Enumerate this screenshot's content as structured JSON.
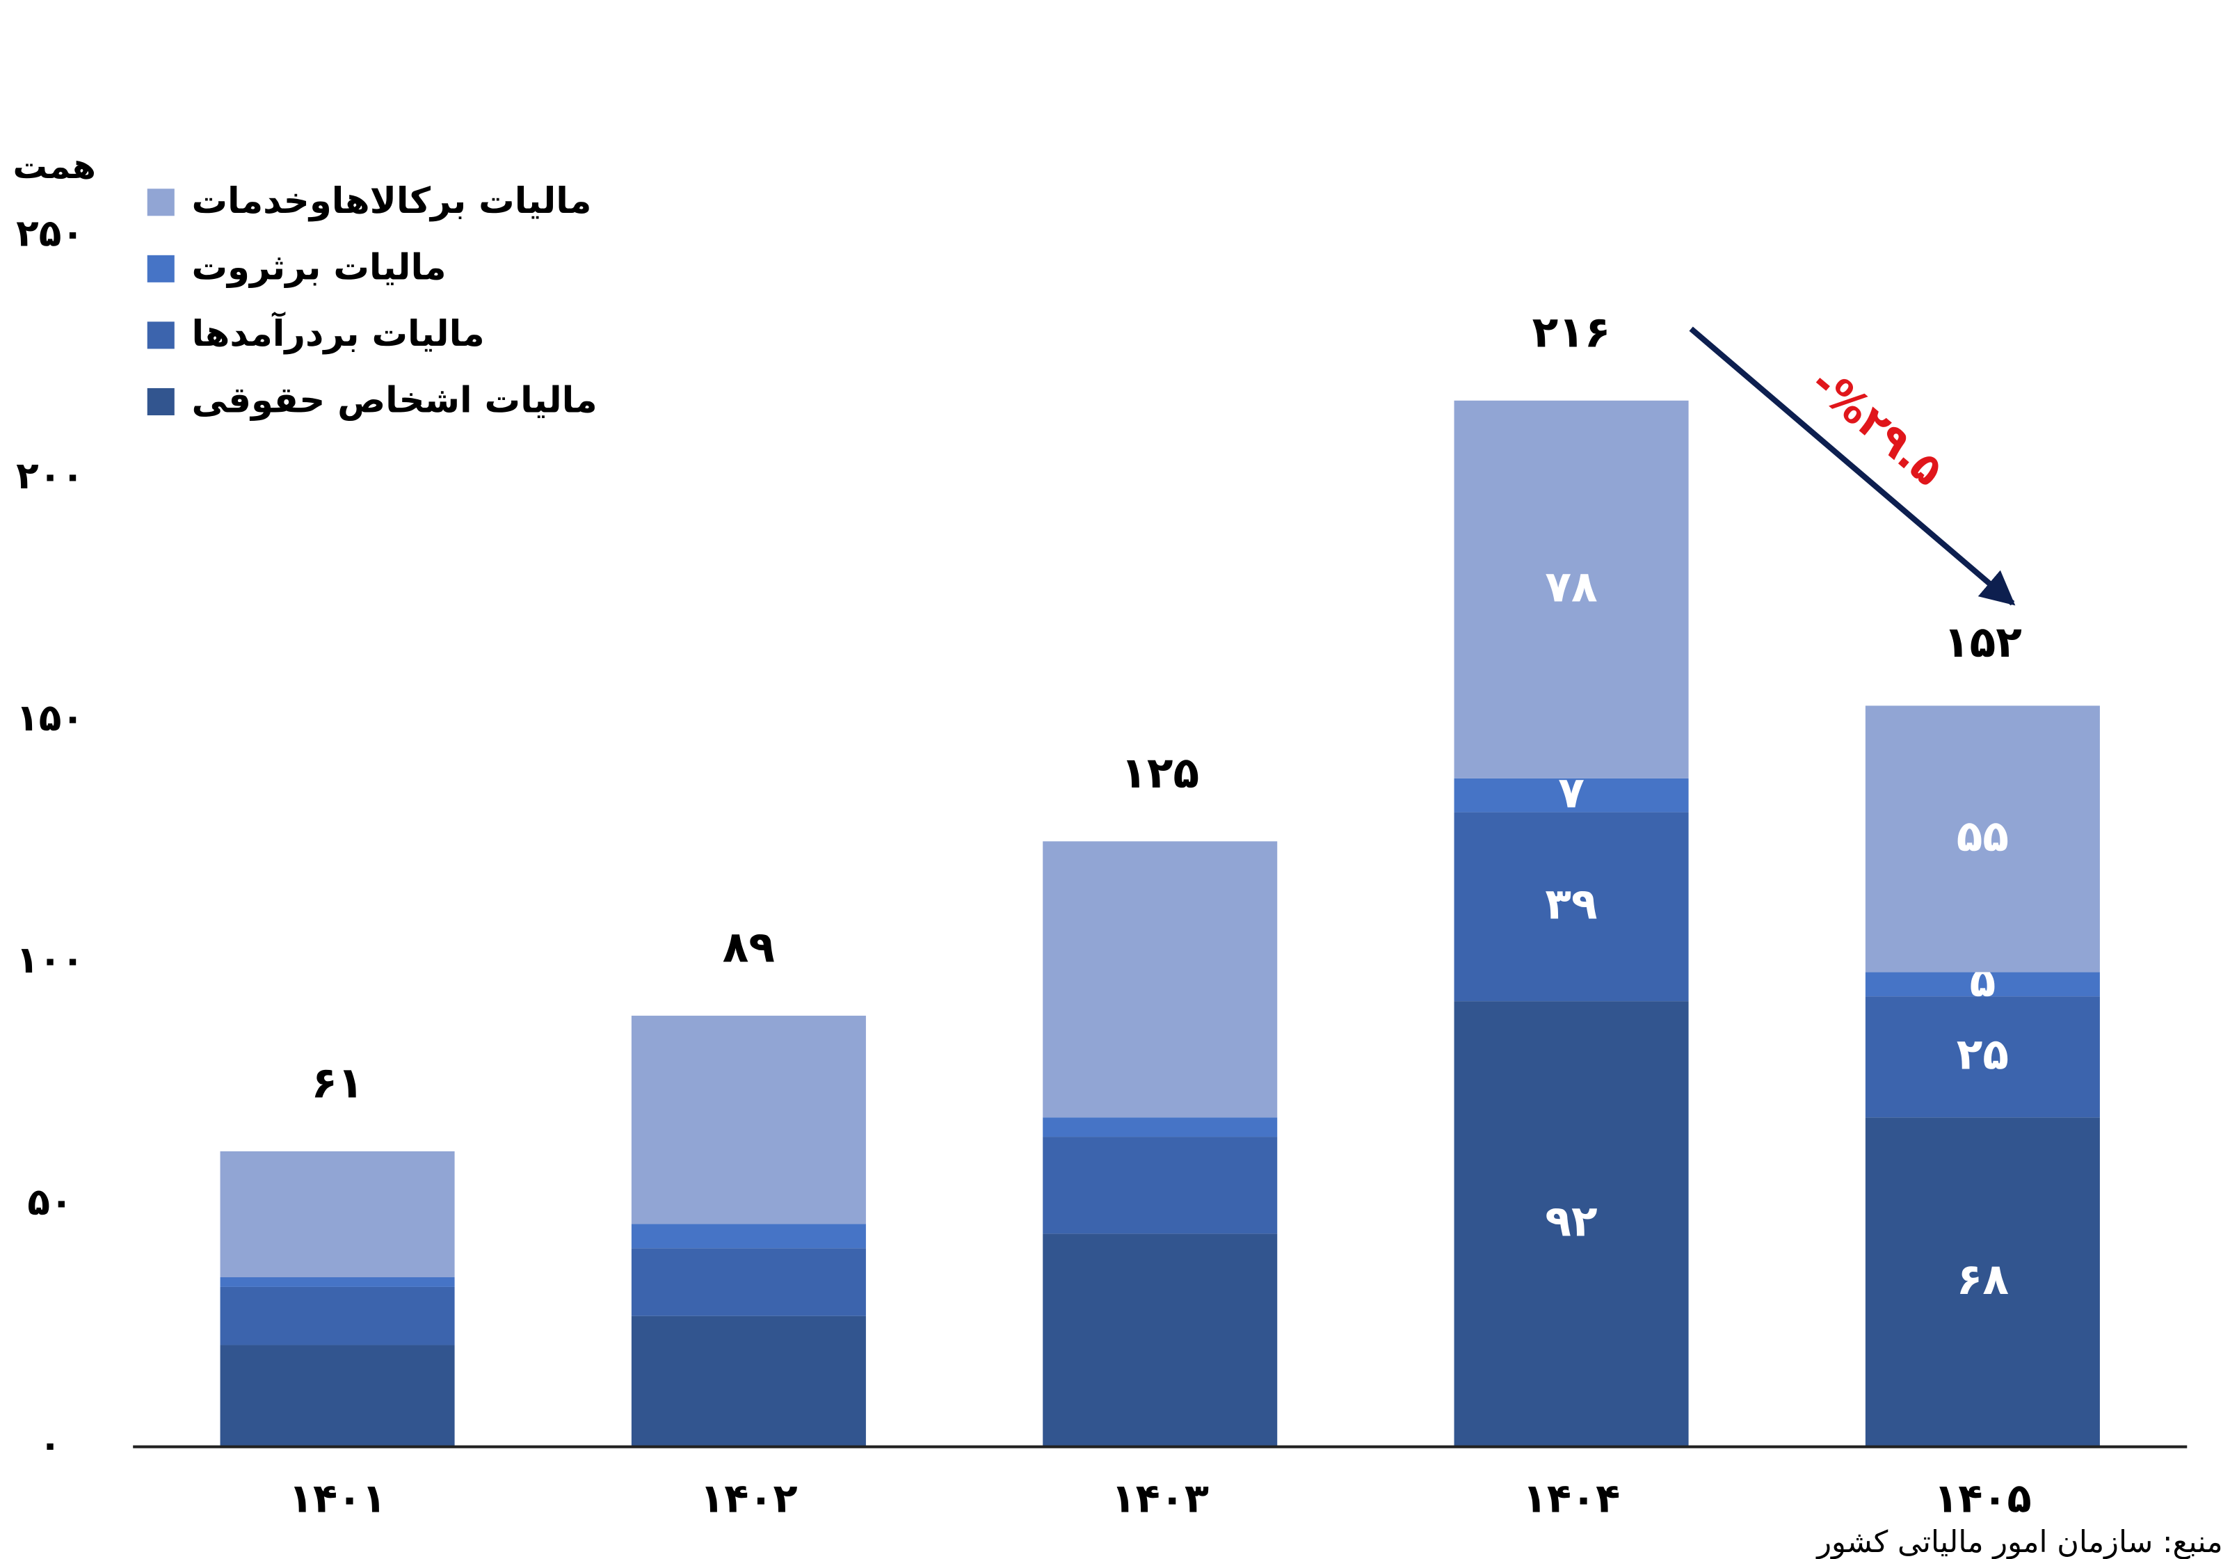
{
  "chart_data": {
    "type": "stacked_bar",
    "unit_label": "همت",
    "categories": [
      "۱۴۰۱",
      "۱۴۰۲",
      "۱۴۰۳",
      "۱۴۰۴",
      "۱۴۰۵"
    ],
    "series": [
      {
        "name": "مالیات اشخاص حقوقی",
        "color": "#32558f",
        "values": [
          21,
          27,
          44,
          92,
          68
        ],
        "value_labels": [
          null,
          null,
          null,
          "۹۲",
          "۶۸"
        ]
      },
      {
        "name": "مالیات بردرآمدها",
        "color": "#3c64ad",
        "values": [
          12,
          14,
          20,
          39,
          25
        ],
        "value_labels": [
          null,
          null,
          null,
          "۳۹",
          "۲۵"
        ]
      },
      {
        "name": "مالیات برثروت",
        "color": "#4674c6",
        "values": [
          2,
          5,
          4,
          7,
          5
        ],
        "value_labels": [
          null,
          null,
          null,
          "۷",
          "۵"
        ]
      },
      {
        "name": "مالیات برکالاهاوخدمات",
        "color": "#91a5d4",
        "values": [
          26,
          43,
          57,
          78,
          55
        ],
        "value_labels": [
          null,
          null,
          null,
          "۷۸",
          "۵۵"
        ]
      }
    ],
    "totals": [
      61,
      89,
      125,
      216,
      152
    ],
    "total_labels": [
      "۶۱",
      "۸۹",
      "۱۲۵",
      "۲۱۶",
      "۱۵۲"
    ],
    "ylim": [
      0,
      250
    ],
    "yticks": [
      {
        "value": 0,
        "label": "۰"
      },
      {
        "value": 50,
        "label": "۵۰"
      },
      {
        "value": 100,
        "label": "۱۰۰"
      },
      {
        "value": 150,
        "label": "۱۵۰"
      },
      {
        "value": 200,
        "label": "۲۰۰"
      },
      {
        "value": 250,
        "label": "۲۵۰"
      }
    ],
    "grid": false,
    "legend": "top-left",
    "annotation": "-%۲۹.۵",
    "source": "منبع: سازمان امور مالیاتی کشور"
  }
}
